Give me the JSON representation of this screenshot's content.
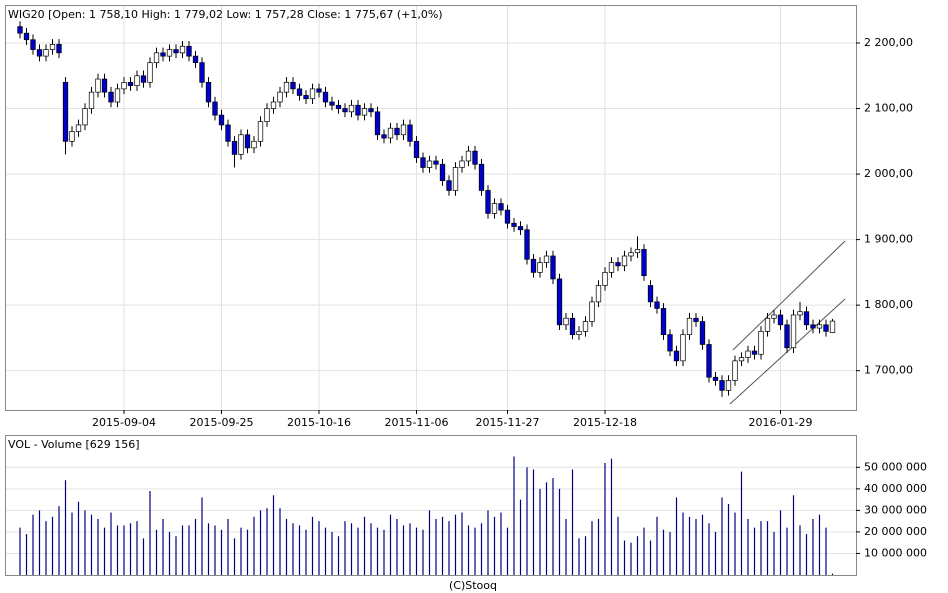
{
  "chart_data": [
    {
      "type": "candlestick",
      "title": "WIG20 [Open: 1 758,10  High: 1 779,02  Low: 1 757,28  Close: 1 775,67 (+1,0%)",
      "categories": [
        null,
        null,
        null,
        null,
        null,
        null,
        null,
        null,
        null,
        null,
        null,
        null,
        null,
        null,
        null,
        null,
        "2015-09-04",
        null,
        null,
        null,
        null,
        null,
        null,
        null,
        null,
        null,
        null,
        null,
        null,
        null,
        null,
        "2015-09-25",
        null,
        null,
        null,
        null,
        null,
        null,
        null,
        null,
        null,
        null,
        null,
        null,
        null,
        null,
        "2015-10-16",
        null,
        null,
        null,
        null,
        null,
        null,
        null,
        null,
        null,
        null,
        null,
        null,
        null,
        null,
        "2015-11-06",
        null,
        null,
        null,
        null,
        null,
        null,
        null,
        null,
        null,
        null,
        null,
        null,
        null,
        "2015-11-27",
        null,
        null,
        null,
        null,
        null,
        null,
        null,
        null,
        null,
        null,
        null,
        null,
        null,
        null,
        "2015-12-18",
        null,
        null,
        null,
        null,
        null,
        null,
        null,
        null,
        null,
        null,
        null,
        null,
        null,
        null,
        null,
        null,
        null,
        null,
        null,
        null,
        null,
        null,
        null,
        null,
        null,
        null,
        "2016-01-29",
        null,
        null,
        null,
        null,
        null,
        null,
        null,
        null
      ],
      "open": [
        2225,
        2215,
        2205,
        2190,
        2180,
        2190,
        2198,
        2140,
        2050,
        2065,
        2075,
        2100,
        2125,
        2145,
        2125,
        2110,
        2130,
        2140,
        2135,
        2150,
        2140,
        2170,
        2185,
        2180,
        2190,
        2185,
        2195,
        2180,
        2170,
        2140,
        2110,
        2090,
        2075,
        2050,
        2030,
        2060,
        2040,
        2050,
        2080,
        2100,
        2110,
        2125,
        2140,
        2130,
        2120,
        2115,
        2130,
        2125,
        2110,
        2105,
        2100,
        2095,
        2105,
        2090,
        2100,
        2095,
        2060,
        2055,
        2070,
        2060,
        2075,
        2050,
        2025,
        2010,
        2020,
        2015,
        1990,
        1975,
        2010,
        2020,
        2035,
        2015,
        1975,
        1940,
        1955,
        1945,
        1925,
        1920,
        1915,
        1870,
        1850,
        1865,
        1875,
        1840,
        1770,
        1780,
        1755,
        1760,
        1775,
        1805,
        1830,
        1850,
        1865,
        1860,
        1875,
        1880,
        1885,
        1830,
        1805,
        1795,
        1755,
        1730,
        1715,
        1755,
        1780,
        1775,
        1740,
        1690,
        1685,
        1670,
        1685,
        1715,
        1720,
        1730,
        1725,
        1760,
        1780,
        1785,
        1770,
        1735,
        1785,
        1790,
        1770,
        1765,
        1770,
        1758.1
      ],
      "high": [
        2233,
        2223,
        2213,
        2198,
        2198,
        2206,
        2206,
        2148,
        2073,
        2083,
        2108,
        2133,
        2153,
        2153,
        2133,
        2138,
        2148,
        2148,
        2158,
        2158,
        2178,
        2193,
        2193,
        2198,
        2198,
        2203,
        2203,
        2188,
        2178,
        2148,
        2118,
        2098,
        2083,
        2058,
        2068,
        2068,
        2058,
        2088,
        2108,
        2118,
        2133,
        2148,
        2148,
        2138,
        2128,
        2138,
        2138,
        2133,
        2118,
        2113,
        2108,
        2113,
        2113,
        2108,
        2108,
        2103,
        2068,
        2078,
        2078,
        2083,
        2083,
        2058,
        2033,
        2028,
        2028,
        2023,
        1998,
        2018,
        2028,
        2043,
        2043,
        2023,
        1983,
        1963,
        1963,
        1953,
        1933,
        1928,
        1923,
        1878,
        1873,
        1883,
        1883,
        1848,
        1788,
        1788,
        1768,
        1783,
        1813,
        1838,
        1858,
        1873,
        1873,
        1883,
        1888,
        1905,
        1893,
        1838,
        1813,
        1803,
        1763,
        1738,
        1763,
        1788,
        1788,
        1783,
        1748,
        1698,
        1693,
        1693,
        1723,
        1728,
        1738,
        1738,
        1768,
        1788,
        1793,
        1793,
        1778,
        1793,
        1805,
        1798,
        1778,
        1778,
        1778,
        1779.02
      ],
      "low": [
        2207,
        2197,
        2182,
        2172,
        2172,
        2182,
        2177,
        2030,
        2042,
        2057,
        2067,
        2092,
        2117,
        2117,
        2102,
        2102,
        2122,
        2127,
        2127,
        2132,
        2132,
        2162,
        2172,
        2172,
        2177,
        2177,
        2172,
        2162,
        2132,
        2102,
        2082,
        2067,
        2042,
        2010,
        2022,
        2032,
        2032,
        2042,
        2072,
        2092,
        2102,
        2117,
        2122,
        2112,
        2107,
        2107,
        2117,
        2102,
        2097,
        2092,
        2087,
        2087,
        2082,
        2082,
        2087,
        2052,
        2047,
        2047,
        2052,
        2052,
        2042,
        2017,
        2002,
        2002,
        2007,
        1982,
        1967,
        1967,
        2002,
        2012,
        2007,
        1967,
        1932,
        1932,
        1937,
        1917,
        1912,
        1907,
        1862,
        1842,
        1842,
        1857,
        1832,
        1762,
        1762,
        1748,
        1747,
        1752,
        1767,
        1797,
        1822,
        1842,
        1852,
        1852,
        1867,
        1872,
        1837,
        1797,
        1787,
        1747,
        1722,
        1707,
        1707,
        1747,
        1767,
        1732,
        1682,
        1677,
        1660,
        1662,
        1677,
        1707,
        1712,
        1717,
        1717,
        1752,
        1772,
        1762,
        1727,
        1727,
        1777,
        1762,
        1757,
        1757,
        1752,
        1757.28
      ],
      "close": [
        2215,
        2205,
        2190,
        2180,
        2190,
        2198,
        2185,
        2050,
        2065,
        2075,
        2100,
        2125,
        2145,
        2125,
        2110,
        2130,
        2140,
        2135,
        2150,
        2140,
        2170,
        2185,
        2180,
        2190,
        2185,
        2195,
        2180,
        2170,
        2140,
        2110,
        2090,
        2075,
        2050,
        2030,
        2060,
        2040,
        2050,
        2080,
        2100,
        2110,
        2125,
        2140,
        2130,
        2120,
        2115,
        2130,
        2125,
        2110,
        2105,
        2100,
        2095,
        2105,
        2090,
        2100,
        2095,
        2060,
        2055,
        2070,
        2060,
        2075,
        2050,
        2025,
        2010,
        2020,
        2015,
        1990,
        1975,
        2010,
        2020,
        2035,
        2015,
        1975,
        1940,
        1955,
        1945,
        1925,
        1920,
        1915,
        1870,
        1850,
        1865,
        1875,
        1840,
        1770,
        1780,
        1755,
        1760,
        1775,
        1805,
        1830,
        1850,
        1865,
        1860,
        1875,
        1880,
        1885,
        1845,
        1805,
        1795,
        1755,
        1730,
        1715,
        1755,
        1780,
        1775,
        1740,
        1690,
        1685,
        1670,
        1685,
        1715,
        1720,
        1730,
        1725,
        1760,
        1780,
        1785,
        1770,
        1735,
        1785,
        1790,
        1770,
        1765,
        1770,
        1760,
        1775.67
      ],
      "ylim": [
        1640,
        2258
      ],
      "yticks": [
        {
          "value": 1700,
          "label": "1 700,00"
        },
        {
          "value": 1800,
          "label": "1 800,00"
        },
        {
          "value": 1900,
          "label": "1 900,00"
        },
        {
          "value": 2000,
          "label": "2 000,00"
        },
        {
          "value": 2100,
          "label": "2 100,00"
        },
        {
          "value": 2200,
          "label": "2 200,00"
        }
      ],
      "grid": true,
      "up_color": "#ffffff",
      "down_color": "#0000cc"
    },
    {
      "type": "bar",
      "title": "VOL - Volume [629 156]",
      "values": [
        22000000,
        19000000,
        28000000,
        30000000,
        25000000,
        27000000,
        32000000,
        44000000,
        29000000,
        34000000,
        30000000,
        28000000,
        26000000,
        22000000,
        29000000,
        23000000,
        23000000,
        24000000,
        25000000,
        17000000,
        39000000,
        21000000,
        26000000,
        20000000,
        18000000,
        23000000,
        23000000,
        26000000,
        36000000,
        24000000,
        23000000,
        21000000,
        26000000,
        17000000,
        22000000,
        21000000,
        27000000,
        30000000,
        31000000,
        37000000,
        31000000,
        26000000,
        24000000,
        23000000,
        21000000,
        27000000,
        25000000,
        22000000,
        20000000,
        18000000,
        25000000,
        24000000,
        22000000,
        27000000,
        24000000,
        22000000,
        21000000,
        28000000,
        26000000,
        23000000,
        24000000,
        22000000,
        21000000,
        30000000,
        26000000,
        27000000,
        25000000,
        28000000,
        29000000,
        23000000,
        22000000,
        24000000,
        30000000,
        27000000,
        29000000,
        22000000,
        55000000,
        35000000,
        50000000,
        49000000,
        40000000,
        43000000,
        45000000,
        40000000,
        26000000,
        49000000,
        17000000,
        18000000,
        25000000,
        26000000,
        52000000,
        54000000,
        27000000,
        16000000,
        15000000,
        18000000,
        22000000,
        16000000,
        27000000,
        21000000,
        20000000,
        36000000,
        29000000,
        27000000,
        26000000,
        28000000,
        24000000,
        20000000,
        36000000,
        33000000,
        29000000,
        48000000,
        26000000,
        22000000,
        25000000,
        25000000,
        20000000,
        30000000,
        22000000,
        37000000,
        23000000,
        19000000,
        26000000,
        28000000,
        22000000,
        629156
      ],
      "color": "#000080",
      "ylim": [
        0,
        65000000
      ],
      "yticks": [
        {
          "value": 10000000,
          "label": "10 000 000"
        },
        {
          "value": 20000000,
          "label": "20 000 000"
        },
        {
          "value": 30000000,
          "label": "30 000 000"
        },
        {
          "value": 40000000,
          "label": "40 000 000"
        },
        {
          "value": 50000000,
          "label": "50 000 000"
        }
      ],
      "grid": true
    }
  ],
  "footer": "(C)Stooq"
}
